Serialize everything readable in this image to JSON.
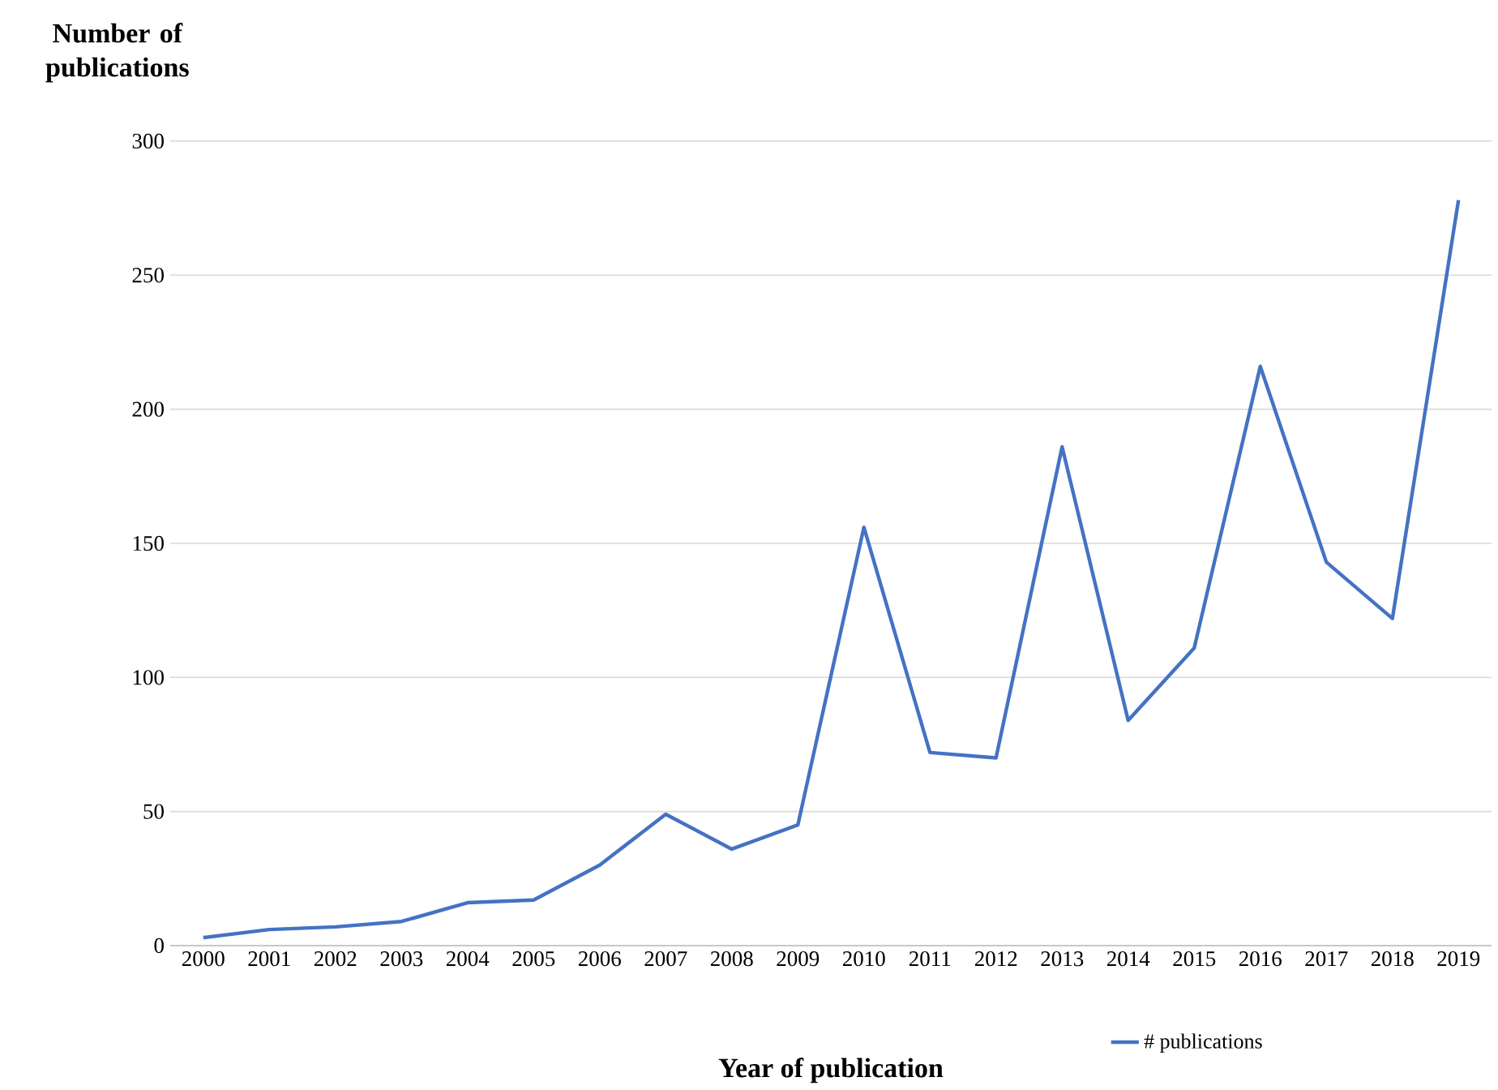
{
  "chart_data": {
    "type": "line",
    "xlabel": "Year of publication",
    "ylabel": "Number of publications",
    "categories": [
      "2000",
      "2001",
      "2002",
      "2003",
      "2004",
      "2005",
      "2006",
      "2007",
      "2008",
      "2009",
      "2010",
      "2011",
      "2012",
      "2013",
      "2014",
      "2015",
      "2016",
      "2017",
      "2018",
      "2019"
    ],
    "series": [
      {
        "name": "# publications",
        "color": "#4472c4",
        "values": [
          3,
          6,
          7,
          9,
          16,
          17,
          30,
          49,
          36,
          45,
          156,
          72,
          70,
          186,
          84,
          111,
          216,
          143,
          122,
          278
        ]
      }
    ],
    "ylim": [
      0,
      300
    ],
    "yticks": [
      0,
      50,
      100,
      150,
      200,
      250,
      300
    ],
    "grid": "y",
    "legend": "bottom",
    "marker": "none",
    "line_style": "solid"
  }
}
